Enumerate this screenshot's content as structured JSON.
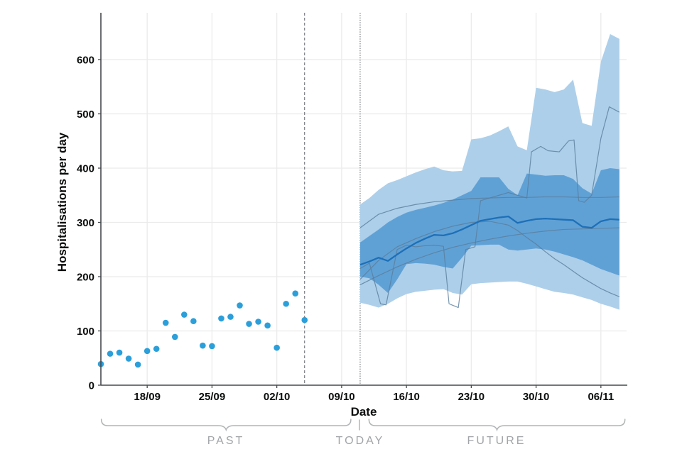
{
  "page": {
    "background": "#ffffff"
  },
  "chart_data": {
    "type": "area",
    "subtype": "fan-chart-with-observed-scatter",
    "title": "",
    "xlabel": "Date",
    "ylabel": "Hospitalisations per day",
    "ylim": [
      0,
      686
    ],
    "grid": true,
    "y_ticks": [
      0,
      100,
      200,
      300,
      400,
      500,
      600
    ],
    "x_ticks": [
      {
        "label": "18/09",
        "day": 5
      },
      {
        "label": "25/09",
        "day": 12
      },
      {
        "label": "02/10",
        "day": 19
      },
      {
        "label": "09/10",
        "day": 26
      },
      {
        "label": "16/10",
        "day": 33
      },
      {
        "label": "23/10",
        "day": 40
      },
      {
        "label": "30/10",
        "day": 47
      },
      {
        "label": "06/11",
        "day": 54
      }
    ],
    "observed": {
      "name": "observed-hospitalisations",
      "start_date": "13/09",
      "start_day": 0,
      "values": [
        39,
        58,
        60,
        49,
        38,
        63,
        67,
        115,
        89,
        130,
        118,
        73,
        72,
        123,
        126,
        147,
        113,
        117,
        110,
        69,
        150,
        169,
        120
      ],
      "color": "#2b9fda",
      "last_date": "05/10"
    },
    "vlines": [
      {
        "name": "end-of-data-line",
        "day": 22,
        "date": "05/10",
        "style": "dashed",
        "color": "#5f6368"
      },
      {
        "name": "today-line",
        "day": 28,
        "date": "11/10",
        "style": "dotted",
        "color": "#5f6368"
      }
    ],
    "fan": {
      "start_day": 28,
      "start_date": "11/10",
      "end_date": "08/11",
      "step_days": 1,
      "outer_top": [
        333,
        345,
        360,
        372,
        378,
        385,
        392,
        398,
        403,
        396,
        394,
        395,
        453,
        455,
        460,
        468,
        477,
        440,
        433,
        548,
        545,
        540,
        545,
        563,
        483,
        478,
        596,
        647,
        638
      ],
      "outer_bottom": [
        152,
        148,
        143,
        150,
        160,
        168,
        172,
        174,
        176,
        177,
        170,
        167,
        186,
        188,
        189,
        190,
        191,
        191,
        187,
        182,
        177,
        172,
        170,
        167,
        162,
        157,
        150,
        145,
        139
      ],
      "inner_top": [
        263,
        275,
        287,
        300,
        310,
        318,
        323,
        327,
        331,
        336,
        342,
        350,
        358,
        383,
        383,
        383,
        362,
        350,
        390,
        388,
        386,
        387,
        387,
        380,
        363,
        353,
        396,
        400,
        398
      ],
      "inner_bottom": [
        200,
        197,
        185,
        170,
        195,
        223,
        225,
        224,
        222,
        218,
        215,
        235,
        257,
        258,
        259,
        259,
        250,
        248,
        250,
        252,
        250,
        246,
        241,
        236,
        230,
        222,
        214,
        208,
        202
      ],
      "median": [
        222,
        228,
        235,
        229,
        241,
        252,
        262,
        270,
        277,
        276,
        280,
        287,
        295,
        303,
        306,
        309,
        311,
        299,
        303,
        306,
        307,
        306,
        305,
        304,
        292,
        290,
        302,
        306,
        305
      ],
      "colors": {
        "outer_band": "#adcfea",
        "inner_band": "#60a1d5",
        "median_line": "#1d70b8"
      }
    },
    "trajectories": {
      "color": "#5a7d9b",
      "series": [
        {
          "name": "model-1",
          "points": [
            [
              0,
              290
            ],
            [
              2,
              315
            ],
            [
              4,
              326
            ],
            [
              6,
              333
            ],
            [
              8,
              338
            ],
            [
              10,
              341
            ],
            [
              12,
              344
            ],
            [
              14,
              345
            ],
            [
              16,
              346
            ],
            [
              18,
              346
            ],
            [
              20,
              347
            ],
            [
              22,
              347
            ],
            [
              24,
              346
            ],
            [
              26,
              346
            ],
            [
              28,
              347
            ]
          ]
        },
        {
          "name": "model-2",
          "points": [
            [
              0,
              195
            ],
            [
              2,
              230
            ],
            [
              4,
              255
            ],
            [
              6,
              270
            ],
            [
              8,
              283
            ],
            [
              10,
              293
            ],
            [
              12,
              300
            ],
            [
              14,
              302
            ],
            [
              16,
              295
            ],
            [
              17,
              285
            ],
            [
              18,
              272
            ],
            [
              19,
              260
            ],
            [
              20,
              246
            ],
            [
              21,
              233
            ],
            [
              22,
              222
            ],
            [
              23,
              210
            ],
            [
              24,
              198
            ],
            [
              25,
              188
            ],
            [
              26,
              178
            ],
            [
              27,
              170
            ],
            [
              28,
              163
            ]
          ]
        },
        {
          "name": "model-3",
          "points": [
            [
              0,
              185
            ],
            [
              2,
              202
            ],
            [
              4,
              218
            ],
            [
              6,
              232
            ],
            [
              8,
              244
            ],
            [
              10,
              254
            ],
            [
              12,
              262
            ],
            [
              14,
              269
            ],
            [
              16,
              275
            ],
            [
              18,
              280
            ],
            [
              20,
              284
            ],
            [
              22,
              287
            ],
            [
              24,
              288
            ],
            [
              26,
              289
            ],
            [
              28,
              290
            ]
          ]
        },
        {
          "name": "model-4",
          "points": [
            [
              0,
              215
            ],
            [
              1,
              225
            ],
            [
              2.2,
              150
            ],
            [
              2.8,
              148
            ],
            [
              4,
              250
            ],
            [
              5,
              258
            ],
            [
              6,
              255
            ],
            [
              7,
              257
            ],
            [
              8,
              258
            ],
            [
              9,
              256
            ],
            [
              9.6,
              150
            ],
            [
              10.6,
              143
            ],
            [
              11.4,
              250
            ],
            [
              12.4,
              255
            ],
            [
              13,
              340
            ],
            [
              14,
              345
            ],
            [
              15,
              350
            ],
            [
              16,
              355
            ],
            [
              17,
              350
            ],
            [
              18,
              345
            ],
            [
              18.5,
              430
            ],
            [
              19.5,
              440
            ],
            [
              20.3,
              432
            ],
            [
              21.5,
              430
            ],
            [
              22.5,
              450
            ],
            [
              23.1,
              452
            ],
            [
              23.6,
              340
            ],
            [
              24.2,
              337
            ],
            [
              25,
              350
            ],
            [
              26,
              455
            ],
            [
              26.9,
              513
            ],
            [
              28,
              503
            ]
          ]
        }
      ]
    },
    "annotations": {
      "past": {
        "label": "PAST",
        "from_day": 0.05,
        "to_day": 27
      },
      "today": {
        "label": "TODAY",
        "day": 27.92
      },
      "future": {
        "label": "FUTURE",
        "from_day": 28.95,
        "to_day": 56.6
      }
    },
    "axis_style": {
      "axis_color": "#454a4d",
      "grid_color": "#ebebeb",
      "tick_label_color": "#0b0c0c",
      "brace_color": "#b1b4b6"
    }
  }
}
